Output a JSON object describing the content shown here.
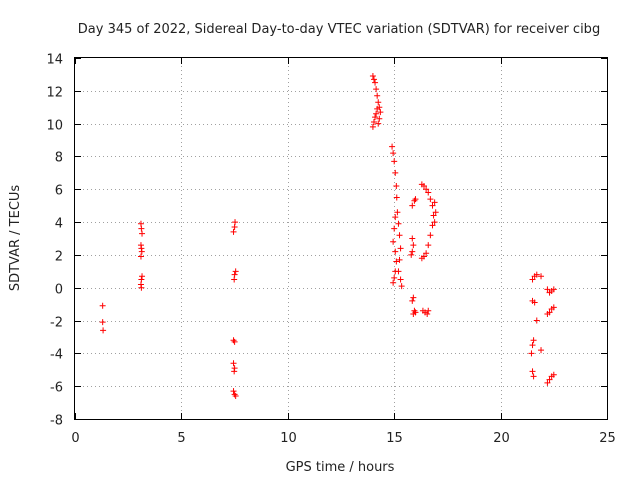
{
  "chart_data": {
    "type": "scatter",
    "title": "Day 345 of 2022, Sidereal Day-to-day VTEC variation (SDTVAR) for receiver cibg",
    "xlabel": "GPS time / hours",
    "ylabel": "SDTVAR / TECUs",
    "xlim": [
      0,
      25
    ],
    "ylim": [
      -8,
      14
    ],
    "xticks": [
      "0",
      "5",
      "10",
      "15",
      "20",
      "25"
    ],
    "yticks": [
      "-8",
      "-6",
      "-4",
      "-2",
      "0",
      "2",
      "4",
      "6",
      "8",
      "10",
      "12",
      "14"
    ],
    "grid": true,
    "marker": "+",
    "color": "#ff0000",
    "series": [
      {
        "name": "SDTVAR",
        "points": [
          [
            1.3,
            -1.1
          ],
          [
            1.3,
            -2.1
          ],
          [
            1.32,
            -2.6
          ],
          [
            3.1,
            3.9
          ],
          [
            3.12,
            3.6
          ],
          [
            3.15,
            3.3
          ],
          [
            3.1,
            2.6
          ],
          [
            3.12,
            2.4
          ],
          [
            3.14,
            2.2
          ],
          [
            3.1,
            1.9
          ],
          [
            3.15,
            0.7
          ],
          [
            3.12,
            0.5
          ],
          [
            3.1,
            0.2
          ],
          [
            3.12,
            0.0
          ],
          [
            7.45,
            3.4
          ],
          [
            7.5,
            3.7
          ],
          [
            7.52,
            4.0
          ],
          [
            7.55,
            1.0
          ],
          [
            7.5,
            0.8
          ],
          [
            7.48,
            0.5
          ],
          [
            7.45,
            -3.2
          ],
          [
            7.5,
            -3.3
          ],
          [
            7.45,
            -4.6
          ],
          [
            7.5,
            -4.9
          ],
          [
            7.48,
            -5.1
          ],
          [
            7.45,
            -6.3
          ],
          [
            7.5,
            -6.5
          ],
          [
            7.55,
            -6.6
          ],
          [
            14.0,
            12.9
          ],
          [
            14.05,
            12.7
          ],
          [
            14.1,
            12.5
          ],
          [
            14.15,
            12.1
          ],
          [
            14.2,
            11.7
          ],
          [
            14.25,
            11.3
          ],
          [
            14.2,
            10.9
          ],
          [
            14.15,
            10.6
          ],
          [
            14.1,
            10.4
          ],
          [
            14.05,
            10.1
          ],
          [
            14.0,
            9.8
          ],
          [
            14.3,
            11.0
          ],
          [
            14.35,
            10.7
          ],
          [
            14.3,
            10.3
          ],
          [
            14.25,
            10.0
          ],
          [
            14.9,
            8.6
          ],
          [
            14.95,
            8.2
          ],
          [
            15.0,
            7.7
          ],
          [
            15.05,
            7.0
          ],
          [
            15.1,
            6.2
          ],
          [
            15.12,
            5.5
          ],
          [
            15.05,
            4.3
          ],
          [
            15.0,
            3.6
          ],
          [
            14.95,
            2.8
          ],
          [
            15.05,
            2.2
          ],
          [
            15.1,
            1.6
          ],
          [
            15.05,
            1.0
          ],
          [
            15.0,
            0.6
          ],
          [
            14.95,
            0.3
          ],
          [
            15.15,
            4.6
          ],
          [
            15.2,
            3.9
          ],
          [
            15.25,
            3.2
          ],
          [
            15.3,
            2.4
          ],
          [
            15.25,
            1.7
          ],
          [
            15.2,
            1.0
          ],
          [
            15.3,
            0.5
          ],
          [
            15.35,
            0.1
          ],
          [
            15.85,
            5.0
          ],
          [
            15.95,
            5.3
          ],
          [
            16.0,
            5.4
          ],
          [
            15.85,
            3.0
          ],
          [
            15.9,
            2.6
          ],
          [
            15.85,
            2.2
          ],
          [
            15.8,
            2.0
          ],
          [
            15.9,
            -0.6
          ],
          [
            15.85,
            -0.8
          ],
          [
            15.95,
            -1.4
          ],
          [
            16.0,
            -1.5
          ],
          [
            15.9,
            -1.6
          ],
          [
            16.3,
            6.3
          ],
          [
            16.4,
            6.2
          ],
          [
            16.5,
            6.0
          ],
          [
            16.6,
            5.8
          ],
          [
            16.7,
            5.4
          ],
          [
            16.8,
            5.0
          ],
          [
            16.85,
            4.4
          ],
          [
            16.8,
            3.8
          ],
          [
            16.7,
            3.2
          ],
          [
            16.6,
            2.6
          ],
          [
            16.5,
            2.1
          ],
          [
            16.4,
            1.9
          ],
          [
            16.3,
            1.8
          ],
          [
            16.9,
            5.2
          ],
          [
            16.95,
            4.6
          ],
          [
            16.9,
            4.0
          ],
          [
            16.35,
            -1.4
          ],
          [
            16.45,
            -1.5
          ],
          [
            16.55,
            -1.6
          ],
          [
            16.6,
            -1.4
          ],
          [
            21.5,
            0.5
          ],
          [
            21.6,
            0.7
          ],
          [
            21.7,
            0.8
          ],
          [
            21.9,
            0.7
          ],
          [
            21.5,
            -0.8
          ],
          [
            21.6,
            -0.9
          ],
          [
            21.7,
            -2.0
          ],
          [
            21.55,
            -3.2
          ],
          [
            21.5,
            -3.5
          ],
          [
            21.45,
            -4.0
          ],
          [
            21.9,
            -3.8
          ],
          [
            21.5,
            -5.1
          ],
          [
            21.55,
            -5.4
          ],
          [
            22.2,
            -0.1
          ],
          [
            22.3,
            -0.3
          ],
          [
            22.4,
            -0.2
          ],
          [
            22.5,
            -0.1
          ],
          [
            22.2,
            -1.6
          ],
          [
            22.3,
            -1.5
          ],
          [
            22.4,
            -1.3
          ],
          [
            22.5,
            -1.2
          ],
          [
            22.2,
            -5.8
          ],
          [
            22.3,
            -5.6
          ],
          [
            22.4,
            -5.4
          ],
          [
            22.5,
            -5.3
          ]
        ]
      }
    ]
  }
}
